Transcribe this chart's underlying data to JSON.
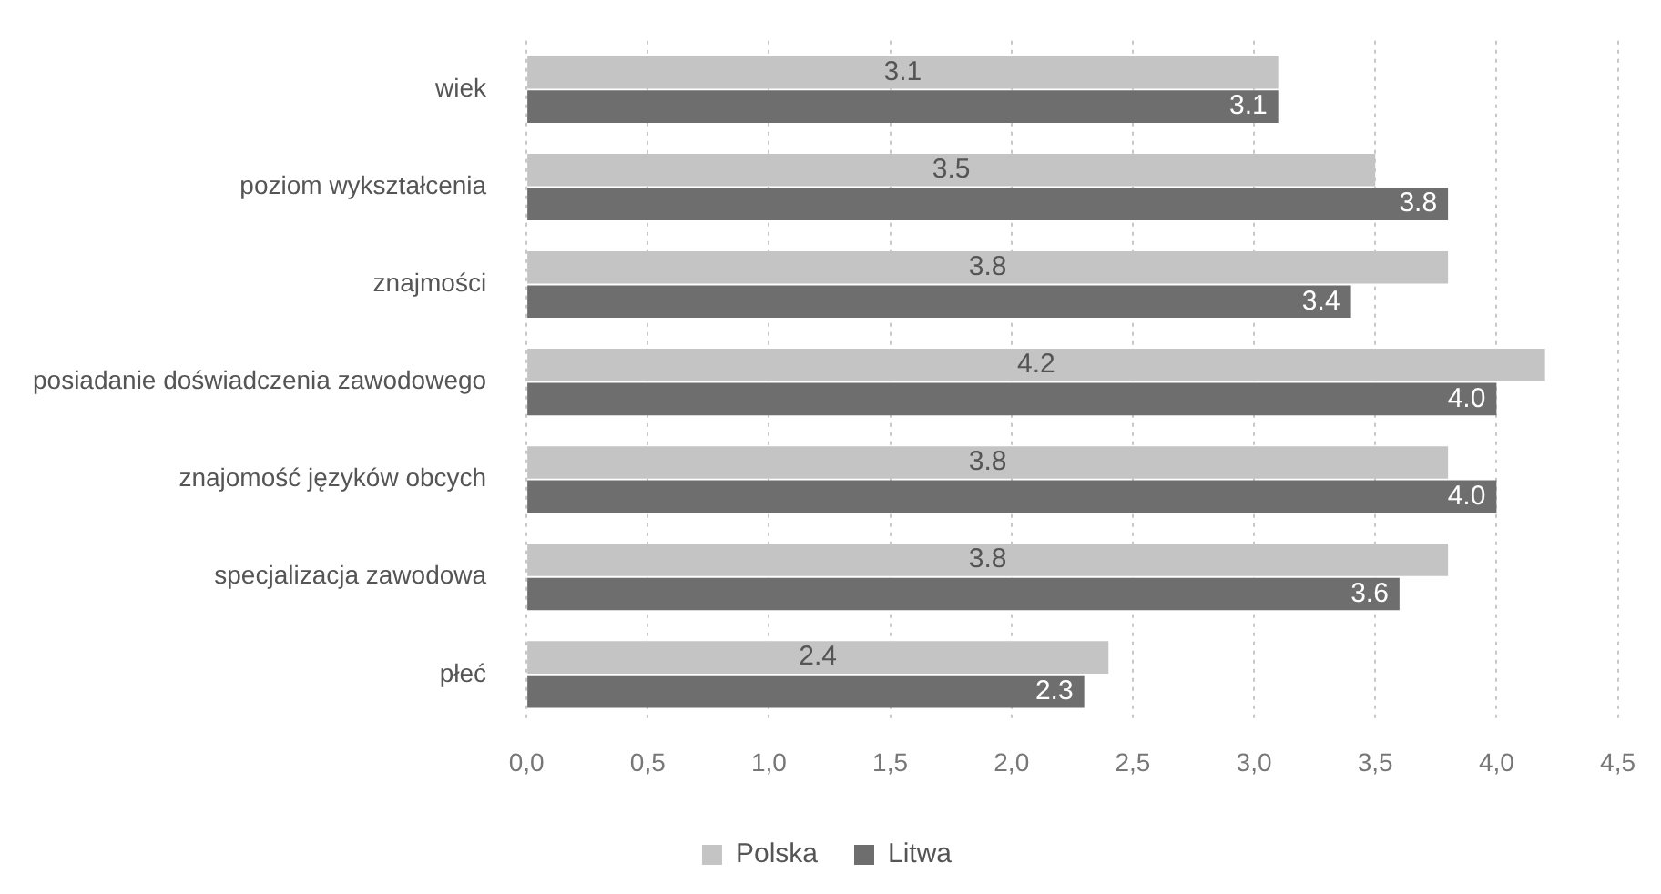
{
  "chart_data": {
    "type": "bar",
    "orientation": "horizontal",
    "categories": [
      "wiek",
      "poziom wykształcenia",
      "znajmości",
      "posiadanie doświadczenia zawodowego",
      "znajomość języków obcych",
      "specjalizacja zawodowa",
      "płeć"
    ],
    "series": [
      {
        "name": "Polska",
        "color": "#c4c4c4",
        "values": [
          3.1,
          3.5,
          3.8,
          4.2,
          3.8,
          3.8,
          2.4
        ],
        "value_labels": [
          "3.1",
          "3.5",
          "3.8",
          "4.2",
          "3.8",
          "3.8",
          "2.4"
        ]
      },
      {
        "name": "Litwa",
        "color": "#6e6e6e",
        "values": [
          3.1,
          3.8,
          3.4,
          4.0,
          4.0,
          3.6,
          2.3
        ],
        "value_labels": [
          "3.1",
          "3.8",
          "3.4",
          "4.0",
          "4.0",
          "3.6",
          "2.3"
        ]
      }
    ],
    "xlim": [
      0,
      4.5
    ],
    "xticks": [
      {
        "value": 0,
        "label": "0,0"
      },
      {
        "value": 0.5,
        "label": "0,5"
      },
      {
        "value": 1,
        "label": "1,0"
      },
      {
        "value": 1.5,
        "label": "1,5"
      },
      {
        "value": 2,
        "label": "2,0"
      },
      {
        "value": 2.5,
        "label": "2,5"
      },
      {
        "value": 3,
        "label": "3,0"
      },
      {
        "value": 3.5,
        "label": "3,5"
      },
      {
        "value": 4,
        "label": "4,0"
      },
      {
        "value": 4.5,
        "label": "4,5"
      }
    ],
    "grid": "x",
    "legend": "bottom"
  }
}
